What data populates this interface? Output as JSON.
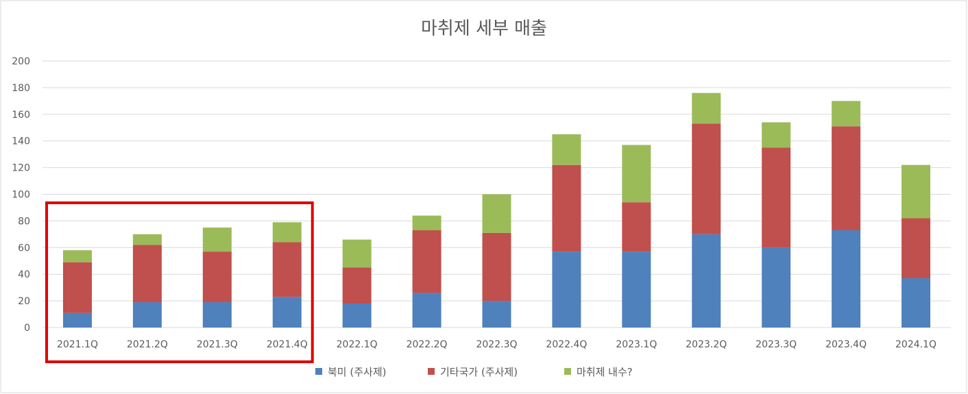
{
  "chart_data": {
    "type": "bar",
    "stacked": true,
    "title": "마취제 세부 매출",
    "categories": [
      "2021.1Q",
      "2021.2Q",
      "2021.3Q",
      "2021.4Q",
      "2022.1Q",
      "2022.2Q",
      "2022.3Q",
      "2022.4Q",
      "2023.1Q",
      "2023.2Q",
      "2023.3Q",
      "2023.4Q",
      "2024.1Q"
    ],
    "series": [
      {
        "name": "북미 (주사제)",
        "color": "#4F81BD",
        "values": [
          11,
          19,
          19,
          23,
          18,
          26,
          20,
          57,
          57,
          70,
          60,
          73,
          37
        ]
      },
      {
        "name": "기타국가 (주사제)",
        "color": "#C0504D",
        "values": [
          38,
          43,
          38,
          41,
          27,
          47,
          51,
          65,
          37,
          83,
          75,
          78,
          45
        ]
      },
      {
        "name": "마취제 내수?",
        "color": "#9BBB59",
        "values": [
          9,
          8,
          18,
          15,
          21,
          11,
          29,
          23,
          43,
          23,
          19,
          19,
          40
        ]
      }
    ],
    "ylim": [
      0,
      200
    ],
    "yticks": [
      "0",
      "20",
      "40",
      "60",
      "80",
      "100",
      "120",
      "140",
      "160",
      "180",
      "200"
    ],
    "grid": true,
    "legend_position": "bottom",
    "highlight": {
      "from_category": "2021.1Q",
      "to_category": "2021.4Q",
      "color": "#E00000"
    }
  }
}
